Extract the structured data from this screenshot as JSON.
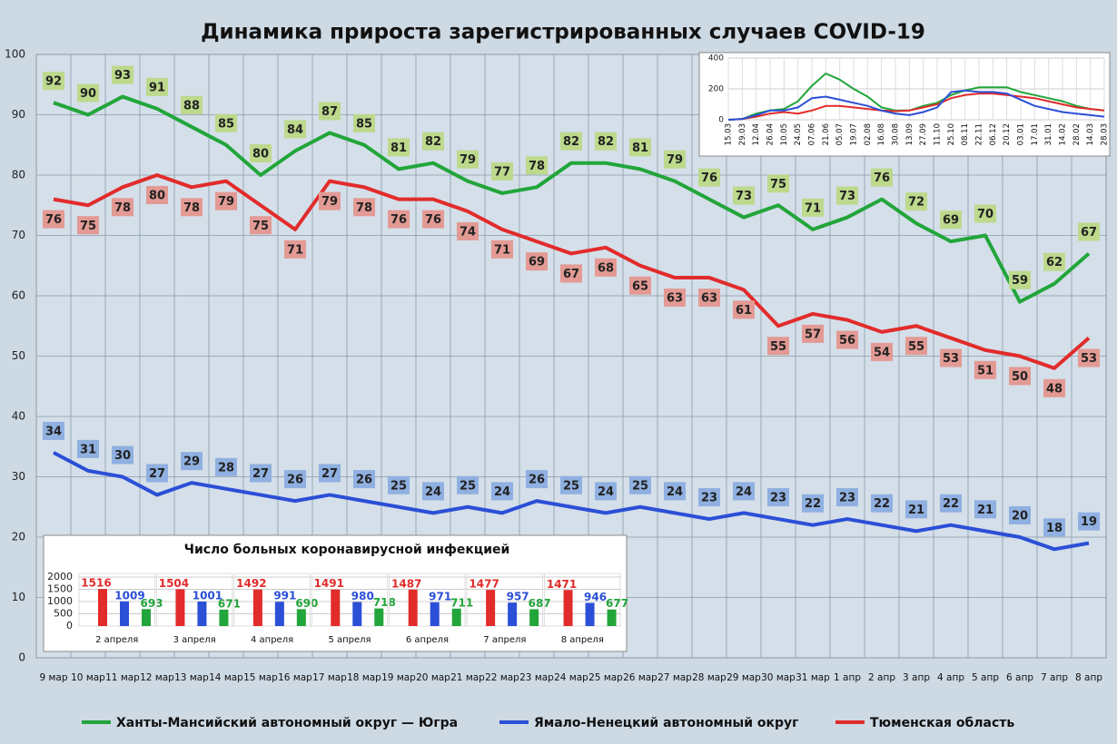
{
  "chart_data": [
    {
      "type": "line",
      "title": "Динамика прироста зарегистрированных случаев COVID-19",
      "categories": [
        "9 мар",
        "10 мар",
        "11 мар",
        "12 мар",
        "13 мар",
        "14 мар",
        "15 мар",
        "16 мар",
        "17 мар",
        "18 мар",
        "19 мар",
        "20 мар",
        "21 мар",
        "22 мар",
        "23 мар",
        "24 мар",
        "25 мар",
        "26 мар",
        "27 мар",
        "28 мар",
        "29 мар",
        "30 мар",
        "31 мар",
        "1 апр",
        "2 апр",
        "3 апр",
        "4 апр",
        "5 апр",
        "6 апр",
        "7 апр",
        "8 апр"
      ],
      "series": [
        {
          "name": "Ханты-Мансийский автономный округ — Югра",
          "color": "#22a53a",
          "label_color": "#bcd98c",
          "values": [
            92,
            90,
            93,
            91,
            88,
            85,
            80,
            84,
            87,
            85,
            81,
            82,
            79,
            77,
            78,
            82,
            82,
            81,
            79,
            76,
            73,
            75,
            71,
            73,
            76,
            72,
            69,
            70,
            59,
            62,
            67
          ]
        },
        {
          "name": "Ямало-Ненецкий автономный округ",
          "color": "#2b4fd6",
          "label_color": "#8fb0e0",
          "values": [
            34,
            31,
            30,
            27,
            29,
            28,
            27,
            26,
            27,
            26,
            25,
            24,
            25,
            24,
            26,
            25,
            24,
            25,
            24,
            23,
            24,
            23,
            22,
            23,
            22,
            21,
            22,
            21,
            20,
            18,
            19
          ]
        },
        {
          "name": "Тюменская область",
          "color": "#e22b2b",
          "label_color": "#e39a94",
          "values": [
            76,
            75,
            78,
            80,
            78,
            79,
            75,
            71,
            79,
            78,
            76,
            76,
            74,
            71,
            69,
            67,
            68,
            65,
            63,
            63,
            61,
            55,
            57,
            56,
            54,
            55,
            53,
            51,
            50,
            48,
            53
          ]
        }
      ],
      "ylim": [
        0,
        100
      ],
      "yticks": [
        0,
        10,
        20,
        30,
        40,
        50,
        60,
        70,
        80,
        90,
        100
      ],
      "grid": true
    },
    {
      "type": "bar",
      "title": "Число больных коронавирусной  инфекцией",
      "categories": [
        "2 апреля",
        "3 апреля",
        "4 апреля",
        "5 апреля",
        "6 апреля",
        "7 апреля",
        "8 апреля"
      ],
      "series": [
        {
          "color": "#e22b2b",
          "values": [
            1516,
            1504,
            1492,
            1491,
            1487,
            1477,
            1471
          ]
        },
        {
          "color": "#2b4fd6",
          "values": [
            1009,
            1001,
            991,
            980,
            971,
            957,
            946
          ]
        },
        {
          "color": "#22a53a",
          "values": [
            693,
            671,
            690,
            718,
            711,
            687,
            677
          ]
        }
      ],
      "ylim": [
        0,
        2000
      ],
      "yticks": [
        0,
        500,
        1000,
        1500,
        2000
      ],
      "grid": true
    },
    {
      "type": "line",
      "categories": [
        "15.03",
        "29.03",
        "12.04",
        "26.04",
        "10.05",
        "24.05",
        "07.06",
        "21.06",
        "05.07",
        "19.07",
        "02.08",
        "16.08",
        "30.08",
        "13.09",
        "27.09",
        "11.10",
        "25.10",
        "08.11",
        "22.11",
        "06.12",
        "20.12",
        "03.01",
        "17.01",
        "31.01",
        "14.02",
        "28.02",
        "14.03",
        "28.03"
      ],
      "series": [
        {
          "color": "#22a53a",
          "values": [
            0,
            5,
            40,
            60,
            70,
            120,
            220,
            300,
            260,
            200,
            150,
            80,
            60,
            60,
            90,
            110,
            160,
            190,
            210,
            210,
            210,
            180,
            160,
            140,
            120,
            90,
            70,
            60
          ]
        },
        {
          "color": "#e22b2b",
          "values": [
            0,
            5,
            20,
            40,
            50,
            40,
            60,
            90,
            90,
            80,
            70,
            60,
            55,
            60,
            80,
            100,
            140,
            160,
            170,
            170,
            160,
            150,
            140,
            120,
            100,
            80,
            70,
            60
          ]
        },
        {
          "color": "#2b4fd6",
          "values": [
            0,
            5,
            30,
            60,
            60,
            80,
            140,
            150,
            130,
            110,
            90,
            60,
            40,
            30,
            50,
            80,
            180,
            190,
            180,
            180,
            170,
            130,
            90,
            70,
            50,
            40,
            30,
            20
          ]
        }
      ],
      "ylim": [
        0,
        400
      ],
      "yticks": [
        0,
        200,
        400
      ],
      "grid": true
    }
  ]
}
